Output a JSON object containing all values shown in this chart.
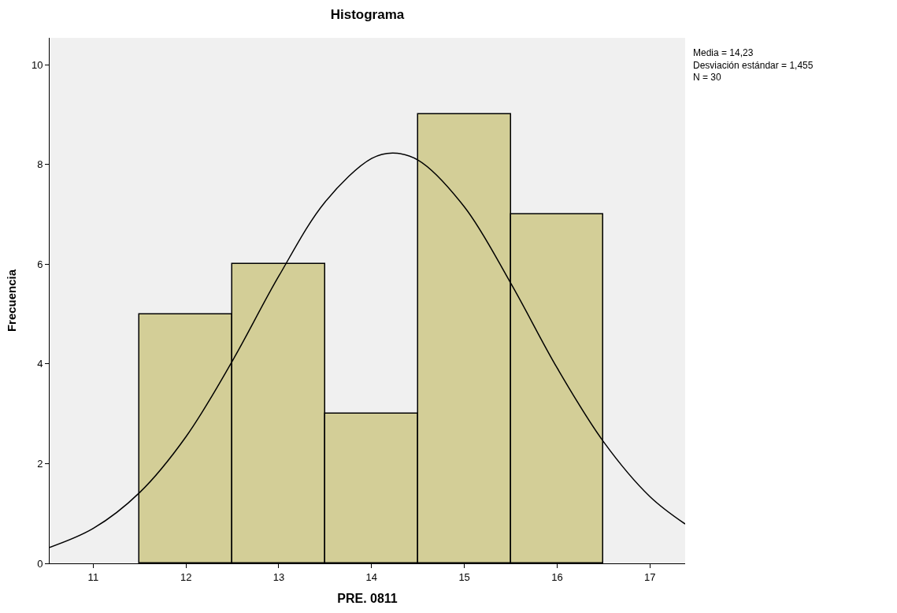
{
  "chart_data": {
    "type": "histogram",
    "title": "Histograma",
    "xlabel": "PRE. 0811",
    "ylabel": "Frecuencia",
    "bins": [
      11.5,
      12.5,
      13.5,
      14.5,
      15.5,
      16.5
    ],
    "values": [
      5,
      6,
      3,
      9,
      7
    ],
    "color": "#d3ce97",
    "series": [
      {
        "type": "line",
        "color": "#000000",
        "x": [
          10.53,
          11,
          11.5,
          12,
          12.5,
          13,
          13.5,
          14,
          14.23,
          14.5,
          15,
          15.5,
          16,
          16.5,
          17,
          17.38
        ],
        "values": [
          0.32,
          0.7,
          1.42,
          2.54,
          4.06,
          5.76,
          7.25,
          8.12,
          8.23,
          8.09,
          7.15,
          5.62,
          3.92,
          2.44,
          1.34,
          0.79
        ]
      }
    ],
    "xlim": [
      10.53,
      17.38
    ],
    "xticks": [
      11,
      12,
      13,
      14,
      15,
      16,
      17
    ],
    "ylim": [
      0,
      10.54
    ],
    "yticks": [
      0,
      2,
      4,
      6,
      8,
      10
    ],
    "grid": false,
    "annotations": [
      "Media = 14,23",
      "Desviación estándar = 1,455",
      "N = 30"
    ]
  }
}
